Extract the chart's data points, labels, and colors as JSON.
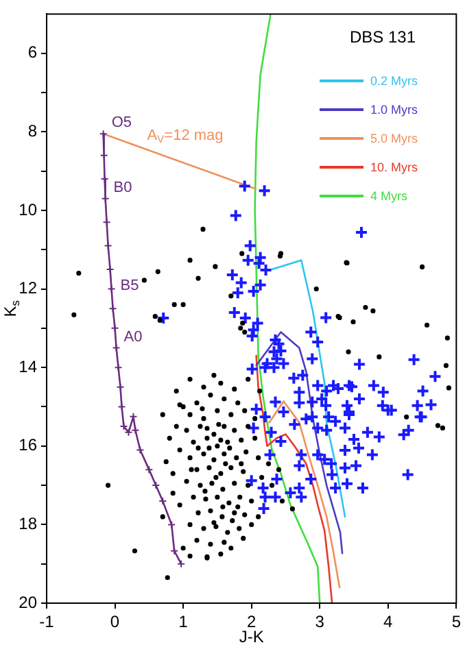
{
  "chart_data": {
    "type": "scatter",
    "xlabel": "J-K",
    "ylabel": "K$_{s}$",
    "legend_title": "DBS 131",
    "legend": "top right",
    "xlim": [
      -1,
      5
    ],
    "ylim": [
      20,
      5
    ],
    "xticks": [
      -1,
      0,
      1,
      2,
      3,
      4,
      5
    ],
    "yticks": [
      6,
      {
        "value": 7,
        "label": null
      },
      8,
      {
        "value": 9,
        "label": null
      },
      10,
      {
        "value": 11,
        "label": null
      },
      12,
      {
        "value": 13,
        "label": null
      },
      14,
      {
        "value": 15,
        "label": null
      },
      16,
      {
        "value": 17,
        "label": null
      },
      18,
      {
        "value": 19,
        "label": null
      },
      20
    ],
    "annotations": [
      {
        "text": "O5",
        "x": -0.17,
        "y": 8.05
      },
      {
        "text": "B0",
        "x": -0.14,
        "y": 9.7
      },
      {
        "text": "B5",
        "x": -0.04,
        "y": 12.2
      },
      {
        "text": "A0",
        "x": 0.01,
        "y": 13.5
      },
      {
        "text": "A$_{V}$=12 mag",
        "x": 0.35,
        "y": 8.37
      }
    ],
    "series": [
      {
        "marker": "circle",
        "color": "#000000",
        "x": [
          1.29,
          1.86,
          1.1,
          0.63,
          -0.53,
          1.22,
          0.43,
          1.47,
          0.87,
          1.0,
          -0.6,
          0.59,
          0.66,
          1.7,
          1.87,
          1.84,
          1.9,
          3.4,
          4.5,
          3.67,
          3.27,
          4.57,
          2.43,
          2.42,
          3.39,
          2.95,
          3.78,
          3.29,
          3.49,
          4.87,
          3.42,
          3.87,
          4.85,
          4.89,
          4.8,
          4.27,
          -0.1,
          0.29,
          0.77,
          1.35,
          4.73,
          1.0,
          1.2,
          1.4,
          1.6,
          1.8,
          1.1,
          1.3,
          1.5,
          1.7,
          1.9,
          0.9,
          1.05,
          1.25,
          1.45,
          1.6,
          1.75,
          1.95,
          1.15,
          1.35,
          1.5,
          1.65,
          1.85,
          2.05,
          0.95,
          1.1,
          1.3,
          1.45,
          1.6,
          1.78,
          1.92,
          1.2,
          1.38,
          1.55,
          1.7,
          1.88,
          0.85,
          1.05,
          1.25,
          1.42,
          1.58,
          1.75,
          1.95,
          1.15,
          1.33,
          1.5,
          1.67,
          1.83,
          2.0,
          0.95,
          1.22,
          1.4,
          1.57,
          1.75,
          1.9,
          1.1,
          1.3,
          1.48,
          1.65,
          1.82,
          1.2,
          1.4,
          1.6,
          1.0,
          1.28,
          1.52,
          1.38,
          1.62,
          1.48,
          1.32,
          1.58,
          1.72,
          1.45,
          1.68,
          1.22,
          1.12,
          1.85,
          1.35,
          1.55,
          1.8,
          0.9,
          1.3,
          1.55,
          1.1,
          1.75,
          1.45,
          0.8,
          0.75,
          0.85,
          2.1,
          2.15,
          2.3,
          2.45,
          2.6,
          2.25,
          2.05,
          2.12,
          1.95,
          2.4,
          1.7,
          1.88,
          0.95,
          0.7,
          0.7,
          2.1,
          2.0,
          1.55,
          1.1,
          1.35
        ],
        "values": [
          10.48,
          11.1,
          11.27,
          11.56,
          11.6,
          11.73,
          11.78,
          11.43,
          12.4,
          12.4,
          12.66,
          12.7,
          12.8,
          12.18,
          12.87,
          13.0,
          13.1,
          11.34,
          11.44,
          12.47,
          12.7,
          12.92,
          11.1,
          11.16,
          11.33,
          12.0,
          12.56,
          12.73,
          12.84,
          13.25,
          13.6,
          13.73,
          13.95,
          14.52,
          15.54,
          15.26,
          17.0,
          18.67,
          19.35,
          18.82,
          15.48,
          15.0,
          14.9,
          14.7,
          14.8,
          14.9,
          15.2,
          15.3,
          15.1,
          15.2,
          15.1,
          15.5,
          15.6,
          15.5,
          15.7,
          15.5,
          15.6,
          15.5,
          15.9,
          15.8,
          16.0,
          15.9,
          15.85,
          15.8,
          16.1,
          16.3,
          16.2,
          16.35,
          16.2,
          16.3,
          16.15,
          16.6,
          16.55,
          16.7,
          16.55,
          16.65,
          16.7,
          16.9,
          17.0,
          16.95,
          17.1,
          16.95,
          17.0,
          17.3,
          17.35,
          17.3,
          17.45,
          17.3,
          17.4,
          17.5,
          17.7,
          17.65,
          17.8,
          17.7,
          17.75,
          18.0,
          18.1,
          18.05,
          18.2,
          18.1,
          18.4,
          18.5,
          18.45,
          18.6,
          15.05,
          15.45,
          16.05,
          16.45,
          16.8,
          17.15,
          17.55,
          17.9,
          17.95,
          16.05,
          16.05,
          16.6,
          16.45,
          15.55,
          15.85,
          17.55,
          14.6,
          14.5,
          14.4,
          14.3,
          14.55,
          14.2,
          15.8,
          16.4,
          17.2,
          16.3,
          16.8,
          17.0,
          17.4,
          17.6,
          16.45,
          15.3,
          14.6,
          14.3,
          16.6,
          18.6,
          18.35,
          14.95,
          15.2,
          17.8,
          17.8,
          18.0,
          18.75,
          18.8,
          18.85
        ]
      },
      {
        "marker": "cross",
        "color": "#1a1aff",
        "x": [
          1.9,
          2.19,
          1.77,
          3.61,
          1.98,
          1.95,
          2.13,
          2.11,
          2.21,
          1.72,
          1.85,
          2.13,
          1.8,
          2.03,
          1.75,
          1.91,
          0.71,
          2.09,
          3.09,
          2.03,
          2.01,
          2.87,
          2.97,
          2.35,
          2.4,
          2.33,
          2.43,
          2.37,
          2.47,
          2.23,
          2.2,
          2.01,
          2.33,
          2.89,
          3.58,
          4.38,
          4.69,
          2.62,
          2.75,
          2.97,
          3.2,
          3.43,
          3.79,
          3.1,
          3.27,
          3.47,
          2.7,
          3.93,
          4.51,
          4.63,
          4.43,
          4.49,
          2.7,
          2.89,
          3.03,
          3.09,
          2.35,
          3.4,
          3.92,
          4.05,
          2.07,
          2.47,
          2.89,
          3.13,
          3.43,
          2.03,
          2.2,
          2.29,
          2.63,
          2.8,
          2.97,
          3.1,
          3.23,
          3.37,
          3.43,
          3.58,
          3.5,
          3.7,
          3.87,
          4.0,
          4.23,
          4.47,
          4.3,
          2.43,
          2.27,
          2.73,
          2.97,
          3.07,
          3.17,
          3.37,
          3.57,
          3.77,
          3.53,
          3.37,
          3.18,
          3.4,
          3.63,
          2.7,
          2.87,
          3.23,
          4.29,
          2.37,
          2.0,
          2.17,
          2.2,
          2.18,
          2.35,
          2.57,
          2.73,
          2.7
        ],
        "values": [
          9.38,
          9.5,
          10.13,
          10.56,
          10.9,
          11.27,
          11.2,
          11.35,
          11.52,
          11.64,
          11.84,
          11.9,
          12.1,
          12.06,
          12.6,
          12.74,
          12.74,
          12.87,
          12.73,
          13.04,
          13.2,
          13.1,
          13.35,
          13.3,
          13.4,
          13.6,
          13.58,
          13.78,
          13.9,
          13.9,
          14.0,
          14.04,
          14.0,
          13.78,
          13.92,
          13.8,
          14.23,
          14.27,
          14.2,
          14.46,
          14.46,
          14.46,
          14.46,
          14.6,
          14.54,
          14.49,
          14.63,
          14.63,
          14.6,
          14.95,
          14.97,
          15.26,
          14.9,
          14.88,
          14.8,
          14.97,
          14.88,
          14.97,
          14.97,
          15.09,
          15.06,
          15.13,
          15.26,
          15.26,
          15.13,
          15.54,
          15.26,
          15.65,
          15.45,
          15.31,
          15.54,
          15.6,
          15.37,
          15.54,
          15.2,
          14.8,
          15.83,
          15.65,
          15.77,
          15.09,
          15.71,
          15.26,
          15.6,
          15.88,
          16.22,
          16.22,
          16.22,
          16.34,
          16.45,
          16.11,
          16.05,
          16.22,
          16.5,
          16.56,
          16.73,
          16.96,
          17.07,
          16.5,
          16.84,
          17.07,
          16.73,
          16.84,
          16.88,
          17.07,
          17.3,
          17.59,
          17.3,
          17.19,
          17.3,
          17.07
        ]
      },
      {
        "type": "line",
        "marker": "cross",
        "color": "#6a2c80",
        "x": [
          -0.17,
          -0.16,
          -0.15,
          -0.14,
          -0.12,
          -0.1,
          -0.07,
          -0.05,
          -0.03,
          0.0,
          0.02,
          0.05,
          0.08,
          0.1,
          0.13,
          0.2,
          0.27,
          0.3,
          0.37,
          0.5,
          0.6,
          0.7,
          0.83,
          0.87,
          0.97
        ],
        "values": [
          8.05,
          8.6,
          9.2,
          9.7,
          10.3,
          10.9,
          11.5,
          12.0,
          12.5,
          13.0,
          13.5,
          14.0,
          14.5,
          15.0,
          15.5,
          15.65,
          15.25,
          15.6,
          16.1,
          16.6,
          17.0,
          17.4,
          18.0,
          18.67,
          19.0
        ]
      },
      {
        "type": "line",
        "marker": "none",
        "color": "#f0905a",
        "x": [
          -0.17,
          2.06
        ],
        "values": [
          8.05,
          9.45
        ]
      },
      {
        "type": "line",
        "marker": "none",
        "name": "0.2 Myrs",
        "color": "#2ec4f0",
        "x": [
          2.3,
          2.73,
          2.9,
          3.07,
          3.1,
          3.23,
          3.37
        ],
        "values": [
          11.5,
          11.27,
          12.58,
          14.4,
          15.43,
          16.45,
          17.8
        ]
      },
      {
        "type": "line",
        "marker": "none",
        "name": "1.0 Myrs",
        "color": "#4b3bc4",
        "x": [
          2.07,
          2.43,
          2.7,
          2.8,
          2.9,
          3.0,
          3.1,
          3.3,
          3.33
        ],
        "values": [
          13.95,
          13.1,
          13.5,
          14.1,
          15.3,
          16.2,
          17.0,
          18.2,
          18.73
        ]
      },
      {
        "type": "line",
        "marker": "none",
        "name": "5.0 Myrs",
        "color": "#f0905a",
        "x": [
          2.26,
          2.3,
          2.47,
          2.7,
          2.83,
          2.97,
          3.1,
          3.2,
          3.29
        ],
        "values": [
          15.4,
          15.3,
          14.86,
          15.4,
          16.2,
          17.0,
          17.8,
          18.7,
          19.6
        ]
      },
      {
        "type": "line",
        "marker": "none",
        "name": "10. Myrs",
        "color": "#e8382a",
        "x": [
          2.07,
          2.1,
          2.17,
          2.2,
          2.23,
          2.37,
          2.5,
          2.63,
          2.8,
          2.9,
          2.97,
          3.07,
          3.13,
          3.18
        ],
        "values": [
          13.7,
          14.5,
          15.2,
          15.65,
          16.0,
          15.8,
          15.7,
          16.0,
          16.45,
          17.0,
          17.5,
          18.15,
          19.07,
          20
        ]
      },
      {
        "type": "line",
        "marker": "none",
        "name": "4 Myrs",
        "color": "#3ede3e",
        "x": [
          2.28,
          2.13,
          2.07,
          2.05,
          2.1,
          2.17,
          2.23,
          2.3,
          2.43,
          2.57,
          2.83,
          2.97,
          3.0
        ],
        "values": [
          5,
          6.55,
          8.26,
          9.97,
          13.7,
          14.74,
          15.4,
          16.1,
          16.7,
          17.5,
          18.5,
          19.07,
          20
        ]
      }
    ]
  }
}
